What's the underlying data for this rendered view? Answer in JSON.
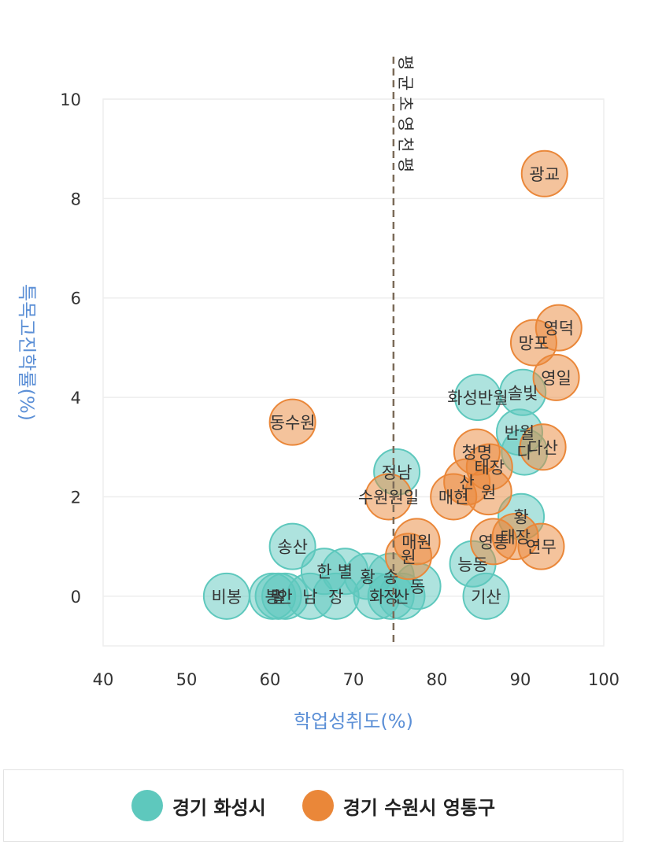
{
  "chart_data": {
    "type": "scatter",
    "title": "",
    "xlabel": "학업성취도(%)",
    "ylabel": "특목고진학률(%)",
    "xlim": [
      40,
      100
    ],
    "ylim": [
      -1,
      10
    ],
    "xticks": [
      40,
      50,
      60,
      70,
      80,
      90,
      100
    ],
    "yticks": [
      0,
      2,
      4,
      6,
      8,
      10
    ],
    "grid": true,
    "legend_position": "bottom",
    "reference_line": {
      "x": 74.8,
      "label": "평 균 초 영 천 평"
    },
    "series": [
      {
        "name": "경기 화성시",
        "color": "#5ec8bd",
        "points": [
          {
            "label": "비봉",
            "x": 54.8,
            "y": 0
          },
          {
            "label": "봉",
            "x": 60.3,
            "y": 0
          },
          {
            "label": "멀",
            "x": 61.0,
            "y": 0
          },
          {
            "label": "안",
            "x": 61.8,
            "y": 0
          },
          {
            "label": "남",
            "x": 64.8,
            "y": 0
          },
          {
            "label": "장",
            "x": 67.9,
            "y": 0
          },
          {
            "label": "화",
            "x": 72.8,
            "y": 0
          },
          {
            "label": "정",
            "x": 74.5,
            "y": 0
          },
          {
            "label": "산",
            "x": 75.8,
            "y": 0
          },
          {
            "label": "송산",
            "x": 62.7,
            "y": 1.0
          },
          {
            "label": "한",
            "x": 66.5,
            "y": 0.5
          },
          {
            "label": "별",
            "x": 69.0,
            "y": 0.5
          },
          {
            "label": "황",
            "x": 71.7,
            "y": 0.4
          },
          {
            "label": "송",
            "x": 74.5,
            "y": 0.4
          },
          {
            "label": "동",
            "x": 77.7,
            "y": 0.2
          },
          {
            "label": "정남",
            "x": 75.2,
            "y": 2.5
          },
          {
            "label": "능동",
            "x": 84.3,
            "y": 0.65
          },
          {
            "label": "기산",
            "x": 85.9,
            "y": 0
          },
          {
            "label": "화성반월",
            "x": 84.9,
            "y": 4.0
          },
          {
            "label": "솔빛",
            "x": 90.3,
            "y": 4.1
          },
          {
            "label": "반월",
            "x": 89.9,
            "y": 3.3
          },
          {
            "label": "다",
            "x": 90.5,
            "y": 2.9
          },
          {
            "label": "황",
            "x": 90.1,
            "y": 1.6
          }
        ]
      },
      {
        "name": "경기 수원시 영통구",
        "color": "#ea8739",
        "points": [
          {
            "label": "동수원",
            "x": 62.7,
            "y": 3.5
          },
          {
            "label": "수원원일",
            "x": 74.2,
            "y": 2.0
          },
          {
            "label": "매원",
            "x": 77.6,
            "y": 1.1
          },
          {
            "label": "원",
            "x": 76.6,
            "y": 0.8
          },
          {
            "label": "광교",
            "x": 92.9,
            "y": 8.5
          },
          {
            "label": "영덕",
            "x": 94.6,
            "y": 5.4
          },
          {
            "label": "망포",
            "x": 91.6,
            "y": 5.1
          },
          {
            "label": "영일",
            "x": 94.3,
            "y": 4.4
          },
          {
            "label": "다산",
            "x": 92.7,
            "y": 3.0
          },
          {
            "label": "청명",
            "x": 84.8,
            "y": 2.9
          },
          {
            "label": "태장",
            "x": 86.3,
            "y": 2.6
          },
          {
            "label": "매현",
            "x": 82.0,
            "y": 2.0
          },
          {
            "label": "산",
            "x": 83.6,
            "y": 2.3
          },
          {
            "label": "원",
            "x": 86.2,
            "y": 2.1
          },
          {
            "label": "영통",
            "x": 86.8,
            "y": 1.1
          },
          {
            "label": "태장",
            "x": 89.4,
            "y": 1.2
          },
          {
            "label": "연무",
            "x": 92.5,
            "y": 1.0
          }
        ]
      }
    ]
  }
}
